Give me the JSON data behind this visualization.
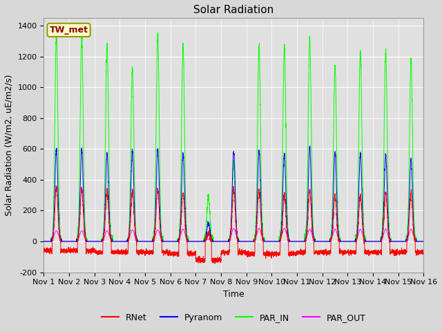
{
  "title": "Solar Radiation",
  "ylabel": "Solar Radiation (W/m2, uE/m2/s)",
  "xlabel": "Time",
  "ylim": [
    -200,
    1450
  ],
  "yticks": [
    -200,
    0,
    200,
    400,
    600,
    800,
    1000,
    1200,
    1400
  ],
  "xtick_labels": [
    "Nov 1",
    "Nov 2",
    "Nov 3",
    "Nov 4",
    "Nov 5",
    "Nov 6",
    "Nov 7",
    "Nov 8",
    "Nov 9",
    "Nov 10",
    "Nov 11",
    "Nov 12",
    "Nov 13",
    "Nov 14",
    "Nov 15",
    "Nov 16"
  ],
  "station_label": "TW_met",
  "fig_bg_color": "#d8d8d8",
  "axes_bg_color": "#e0e0e0",
  "grid_color": "#ffffff",
  "title_fontsize": 11,
  "label_fontsize": 9,
  "tick_fontsize": 8,
  "n_days": 15,
  "peak_par_in": [
    1350,
    1340,
    1280,
    1110,
    1340,
    1270,
    300,
    510,
    1270,
    1260,
    1320,
    1140,
    1240,
    1240,
    1180
  ],
  "peak_pyranom": [
    600,
    600,
    570,
    590,
    600,
    570,
    120,
    580,
    590,
    570,
    610,
    580,
    570,
    560,
    530
  ],
  "peak_rnet": [
    350,
    340,
    320,
    320,
    340,
    310,
    50,
    340,
    330,
    300,
    330,
    290,
    300,
    310,
    310
  ],
  "peak_par_out": [
    70,
    70,
    70,
    75,
    75,
    80,
    15,
    85,
    85,
    85,
    80,
    80,
    80,
    80,
    80
  ],
  "night_rnet": [
    -60,
    -60,
    -70,
    -70,
    -70,
    -80,
    -120,
    -70,
    -80,
    -80,
    -70,
    -70,
    -70,
    -70,
    -70
  ],
  "line_colors": {
    "par_in": "#00ff00",
    "pyranom": "#0000ff",
    "rnet": "#ff0000",
    "par_out": "#ff00ff"
  },
  "line_width": 0.7
}
